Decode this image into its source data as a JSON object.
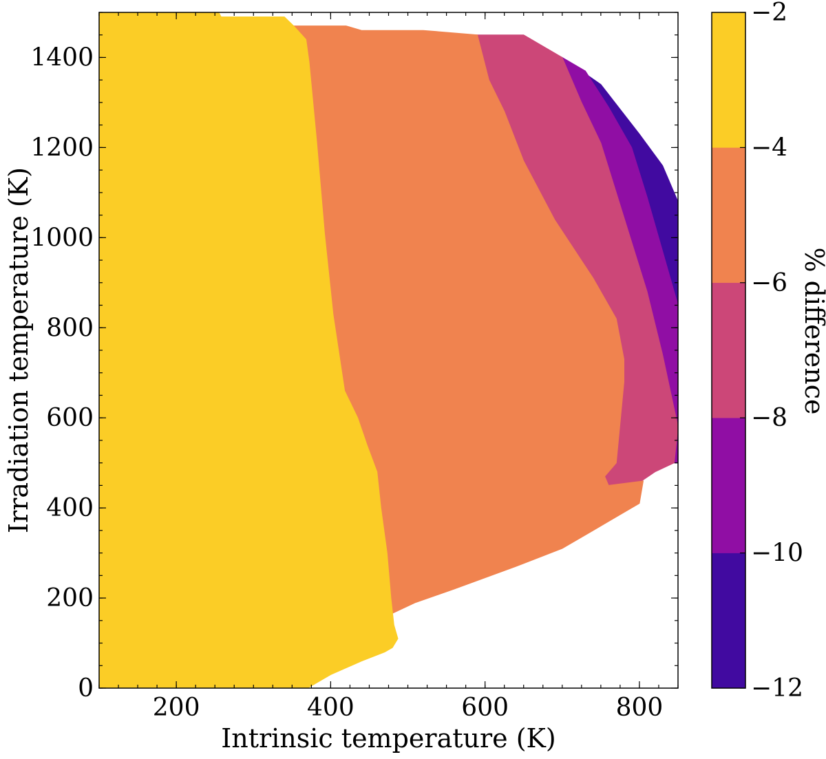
{
  "chart_data": {
    "type": "filled-contour",
    "xlabel": "Intrinsic temperature (K)",
    "ylabel": "Irradiation temperature (K)",
    "xlim": [
      100,
      850
    ],
    "ylim": [
      0,
      1500
    ],
    "x_ticks": [
      200,
      400,
      600,
      800
    ],
    "y_ticks": [
      0,
      200,
      400,
      600,
      800,
      1000,
      1200,
      1400
    ],
    "x_minor_step": 25,
    "y_minor_step": 50,
    "colorbar": {
      "label": "% difference",
      "ticks": [
        -2,
        -4,
        -6,
        -8,
        -10,
        -12
      ],
      "tick_labels": [
        "−2",
        "−4",
        "−6",
        "−8",
        "−10",
        "−12"
      ],
      "levels": [
        {
          "range": [
            -12,
            -10
          ],
          "color": "#410aa0"
        },
        {
          "range": [
            -10,
            -8
          ],
          "color": "#900ea4"
        },
        {
          "range": [
            -8,
            -6
          ],
          "color": "#cc4778"
        },
        {
          "range": [
            -6,
            -4
          ],
          "color": "#f0834f"
        },
        {
          "range": [
            -4,
            -2
          ],
          "color": "#fbcd26"
        }
      ]
    },
    "regions": [
      {
        "level": "-12 to -10",
        "color": "#410aa0",
        "outline": [
          [
            700,
            1400
          ],
          [
            750,
            1340
          ],
          [
            800,
            1230
          ],
          [
            830,
            1160
          ],
          [
            855,
            1060
          ],
          [
            850,
            850
          ],
          [
            840,
            800
          ],
          [
            820,
            880
          ],
          [
            790,
            970
          ],
          [
            760,
            1090
          ],
          [
            740,
            1200
          ],
          [
            710,
            1330
          ]
        ]
      },
      {
        "level": "-10 to -8",
        "color": "#900ea4",
        "outline": [
          [
            650,
            1420
          ],
          [
            700,
            1400
          ],
          [
            730,
            1370
          ],
          [
            760,
            1290
          ],
          [
            790,
            1200
          ],
          [
            810,
            1090
          ],
          [
            830,
            970
          ],
          [
            850,
            850
          ],
          [
            850,
            500
          ],
          [
            845,
            500
          ],
          [
            830,
            570
          ],
          [
            810,
            700
          ],
          [
            790,
            810
          ],
          [
            760,
            960
          ],
          [
            730,
            1100
          ],
          [
            700,
            1230
          ],
          [
            670,
            1380
          ]
        ]
      },
      {
        "level": "-8 to -6",
        "color": "#cc4778",
        "outline": [
          [
            550,
            1450
          ],
          [
            650,
            1450
          ],
          [
            700,
            1400
          ],
          [
            725,
            1300
          ],
          [
            750,
            1210
          ],
          [
            770,
            1100
          ],
          [
            790,
            990
          ],
          [
            810,
            880
          ],
          [
            830,
            740
          ],
          [
            850,
            580
          ],
          [
            845,
            500
          ],
          [
            820,
            480
          ],
          [
            760,
            410
          ],
          [
            690,
            350
          ],
          [
            640,
            300
          ],
          [
            620,
            300
          ],
          [
            600,
            310
          ],
          [
            575,
            350
          ],
          [
            560,
            380
          ],
          [
            540,
            410
          ],
          [
            520,
            430
          ],
          [
            510,
            440
          ],
          [
            500,
            450
          ],
          [
            500,
            480
          ],
          [
            545,
            540
          ],
          [
            590,
            620
          ],
          [
            590,
            800
          ],
          [
            590,
            900
          ],
          [
            580,
            1000
          ],
          [
            560,
            1150
          ],
          [
            530,
            1280
          ],
          [
            515,
            1380
          ],
          [
            500,
            1450
          ]
        ]
      },
      {
        "level": "-6 to -4",
        "color": "#f0834f",
        "outline": [
          [
            270,
            1490
          ],
          [
            340,
            1480
          ],
          [
            350,
            1470
          ],
          [
            420,
            1470
          ],
          [
            440,
            1460
          ],
          [
            520,
            1460
          ],
          [
            590,
            1450
          ],
          [
            605,
            1350
          ],
          [
            625,
            1280
          ],
          [
            650,
            1170
          ],
          [
            690,
            1040
          ],
          [
            740,
            910
          ],
          [
            770,
            820
          ],
          [
            780,
            730
          ],
          [
            780,
            680
          ],
          [
            770,
            500
          ],
          [
            755,
            470
          ],
          [
            760,
            450
          ],
          [
            805,
            460
          ],
          [
            800,
            410
          ],
          [
            770,
            380
          ],
          [
            740,
            350
          ],
          [
            700,
            310
          ],
          [
            640,
            270
          ],
          [
            560,
            220
          ],
          [
            510,
            190
          ],
          [
            460,
            150
          ],
          [
            410,
            100
          ],
          [
            400,
            100
          ],
          [
            380,
            130
          ],
          [
            375,
            220
          ],
          [
            375,
            350
          ],
          [
            373,
            500
          ],
          [
            368,
            650
          ],
          [
            352,
            840
          ],
          [
            345,
            1010
          ],
          [
            335,
            1240
          ],
          [
            325,
            1360
          ],
          [
            320,
            1440
          ],
          [
            305,
            1490
          ]
        ]
      },
      {
        "level": "-4 to -2",
        "color": "#fbcd26",
        "outline": [
          [
            100,
            1500
          ],
          [
            255,
            1500
          ],
          [
            258,
            1490
          ],
          [
            340,
            1490
          ],
          [
            352,
            1470
          ],
          [
            368,
            1440
          ],
          [
            372,
            1390
          ],
          [
            382,
            1210
          ],
          [
            392,
            1010
          ],
          [
            403,
            830
          ],
          [
            418,
            660
          ],
          [
            435,
            600
          ],
          [
            447,
            540
          ],
          [
            460,
            480
          ],
          [
            465,
            400
          ],
          [
            473,
            300
          ],
          [
            478,
            200
          ],
          [
            482,
            140
          ],
          [
            487,
            110
          ],
          [
            480,
            90
          ],
          [
            470,
            80
          ],
          [
            440,
            60
          ],
          [
            400,
            30
          ],
          [
            370,
            0
          ],
          [
            100,
            0
          ]
        ]
      }
    ]
  }
}
